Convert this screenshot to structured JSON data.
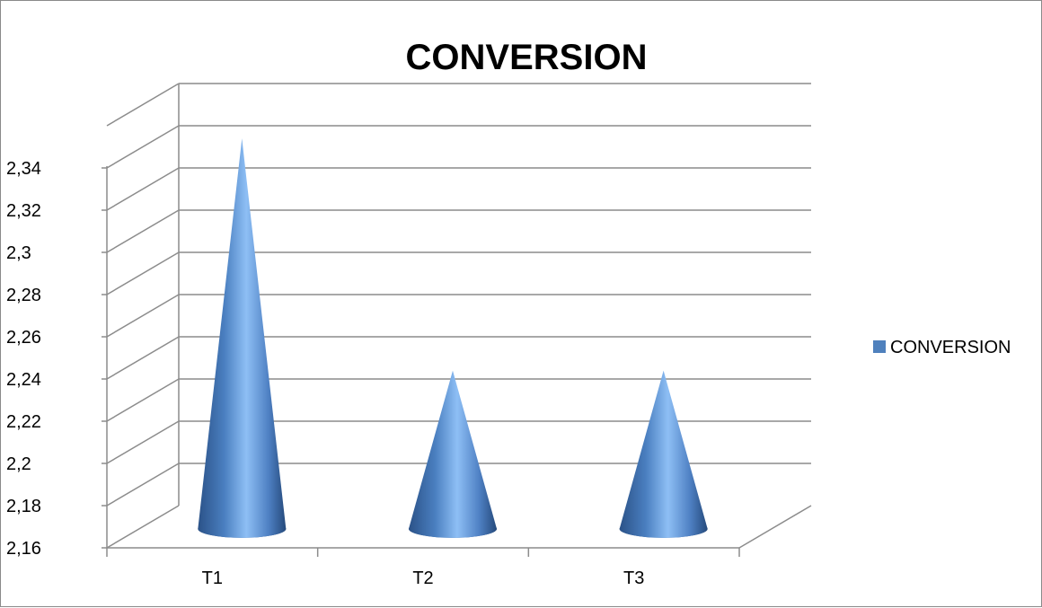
{
  "chart_data": {
    "type": "bar",
    "style": "3d-cone",
    "title": "CONVERSION",
    "categories": [
      "T1",
      "T2",
      "T3"
    ],
    "series": [
      {
        "name": "CONVERSION",
        "values": [
          2.345,
          2.235,
          2.235
        ],
        "color": "#4f81bd"
      }
    ],
    "ylim": [
      2.16,
      2.34
    ],
    "yticks": [
      2.16,
      2.18,
      2.2,
      2.22,
      2.24,
      2.26,
      2.28,
      2.3,
      2.32,
      2.34
    ],
    "ytick_labels": [
      "2,16",
      "2,18",
      "2,2",
      "2,22",
      "2,24",
      "2,26",
      "2,28",
      "2,3",
      "2,32",
      "2,34"
    ],
    "grid": true,
    "legend": "right"
  }
}
